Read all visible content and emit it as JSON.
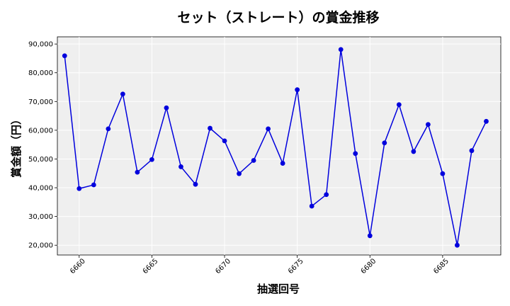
{
  "chart_data": {
    "type": "line",
    "title": "セット（ストレート）の賞金推移",
    "xlabel": "抽選回号",
    "ylabel": "賞金額（円）",
    "x": [
      6659,
      6660,
      6661,
      6662,
      6663,
      6664,
      6665,
      6666,
      6667,
      6668,
      6669,
      6670,
      6671,
      6672,
      6673,
      6674,
      6675,
      6676,
      6677,
      6678,
      6679,
      6680,
      6681,
      6682,
      6683,
      6684,
      6685,
      6686,
      6687,
      6688
    ],
    "series": [
      {
        "values": [
          85900,
          39700,
          41000,
          60500,
          72600,
          45400,
          49800,
          67800,
          47300,
          41200,
          60700,
          56300,
          44900,
          49500,
          60500,
          48500,
          74100,
          33600,
          37600,
          88100,
          51900,
          23300,
          55600,
          68900,
          52600,
          62000,
          44900,
          20000,
          52900,
          63100
        ],
        "color": "#0000dd"
      }
    ],
    "xticks": [
      "6660",
      "6665",
      "6670",
      "6675",
      "6680",
      "6685"
    ],
    "yticks": [
      "20,000",
      "30,000",
      "40,000",
      "50,000",
      "60,000",
      "70,000",
      "80,000",
      "90,000"
    ],
    "xlim": [
      6658.5,
      6689
    ],
    "ylim": [
      16600,
      92500
    ],
    "grid": true,
    "plot_background": "#efefef"
  }
}
